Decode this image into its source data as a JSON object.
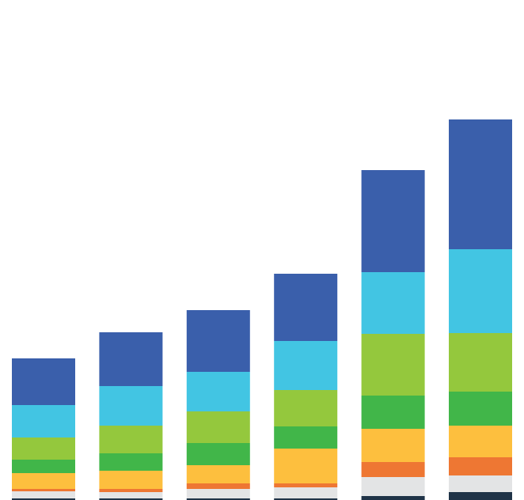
{
  "chart_data": {
    "type": "stacked-bar",
    "ylim": [
      0,
      632
    ],
    "series": [
      {
        "color": "#1f3347",
        "values": [
          2,
          2,
          2,
          2,
          5,
          10
        ]
      },
      {
        "color": "#e3e4e5",
        "values": [
          9,
          8,
          12,
          14,
          24,
          21
        ]
      },
      {
        "color": "#ee7733",
        "values": [
          3,
          4,
          7,
          5,
          19,
          23
        ]
      },
      {
        "color": "#fdbf3e",
        "values": [
          20,
          23,
          23,
          44,
          42,
          40
        ]
      },
      {
        "color": "#41b649",
        "values": [
          17,
          22,
          28,
          28,
          42,
          43
        ]
      },
      {
        "color": "#94c83d",
        "values": [
          28,
          35,
          40,
          46,
          78,
          74
        ]
      },
      {
        "color": "#42c5e3",
        "values": [
          41,
          50,
          50,
          62,
          78,
          106
        ]
      },
      {
        "color": "#3a5fab",
        "values": [
          59,
          68,
          78,
          85,
          129,
          164
        ]
      }
    ]
  }
}
